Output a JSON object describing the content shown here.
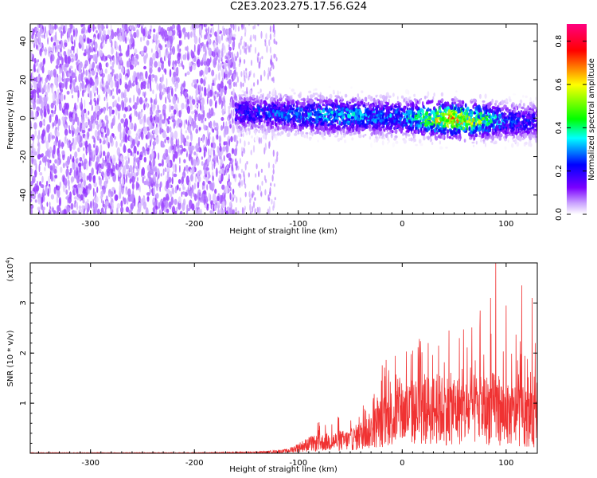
{
  "page": {
    "title": "C2E3.2023.275.17.56.G24"
  },
  "chart_data": [
    {
      "type": "heatmap",
      "xlabel": "Height of straight line (km)",
      "ylabel": "Frequency (Hz)",
      "xlim": [
        -358,
        130
      ],
      "ylim": [
        -50,
        49
      ],
      "xticks": [
        -300,
        -200,
        -100,
        0,
        100
      ],
      "yticks": [
        -40,
        -20,
        0,
        20,
        40
      ],
      "colorbar": {
        "label": "Normalized spectral amplitude",
        "range": [
          0,
          0.88
        ],
        "ticks": [
          "0.0",
          "0.2",
          "0.4",
          "0.6",
          "0.8"
        ],
        "tick_values": [
          0,
          0.2,
          0.4,
          0.6,
          0.8
        ],
        "colormap": [
          "#ffffff",
          "#7b00ff",
          "#0000ff",
          "#00ffff",
          "#00ff00",
          "#ffff00",
          "#ff0000",
          "#ff0080"
        ]
      },
      "regions": [
        {
          "x_range": [
            -358,
            -160
          ],
          "f_range": [
            -50,
            49
          ],
          "amplitude": 0.08,
          "note": "broadband noise"
        },
        {
          "x_range": [
            -160,
            130
          ],
          "f_range": [
            -15,
            10
          ],
          "amplitude": 0.35,
          "note": "signal band near 0 Hz, strongest 20 to 90 km (~0.8)"
        }
      ]
    },
    {
      "type": "line",
      "xlabel": "Height of straight line (km)",
      "ylabel": "SNR (10 * v/v)",
      "y_multiplier_label": "(x10",
      "y_multiplier_exp": "4",
      "y_multiplier_close": ")",
      "xlim": [
        -358,
        130
      ],
      "ylim": [
        0,
        3.8
      ],
      "xticks": [
        -300,
        -200,
        -100,
        0,
        100
      ],
      "yticks": [
        1,
        2,
        3
      ],
      "color": "#f03232",
      "series": [
        {
          "x": [
            -358,
            -300,
            -250,
            -200,
            -150,
            -130,
            -110,
            -90,
            -70,
            -50,
            -30,
            -20,
            -10,
            0,
            10,
            20,
            30,
            40,
            50,
            60,
            70,
            80,
            90,
            100,
            110,
            120,
            130
          ],
          "y": [
            0.01,
            0.01,
            0.01,
            0.01,
            0.02,
            0.03,
            0.06,
            0.22,
            0.28,
            0.32,
            0.55,
            0.75,
            0.88,
            0.95,
            1.0,
            1.0,
            1.05,
            1.05,
            1.08,
            1.0,
            1.05,
            1.05,
            1.1,
            0.9,
            0.95,
            0.85,
            0.75
          ],
          "peaks": [
            [
              -80,
              0.62
            ],
            [
              -60,
              0.45
            ],
            [
              -35,
              0.85
            ],
            [
              -20,
              1.45
            ],
            [
              10,
              2.05
            ],
            [
              25,
              2.2
            ],
            [
              35,
              2.15
            ],
            [
              45,
              2.45
            ],
            [
              55,
              2.3
            ],
            [
              75,
              2.85
            ],
            [
              85,
              3.1
            ],
            [
              90,
              3.8
            ],
            [
              100,
              2.95
            ],
            [
              115,
              3.35
            ],
            [
              125,
              3.1
            ],
            [
              128,
              2.2
            ]
          ]
        }
      ]
    }
  ]
}
